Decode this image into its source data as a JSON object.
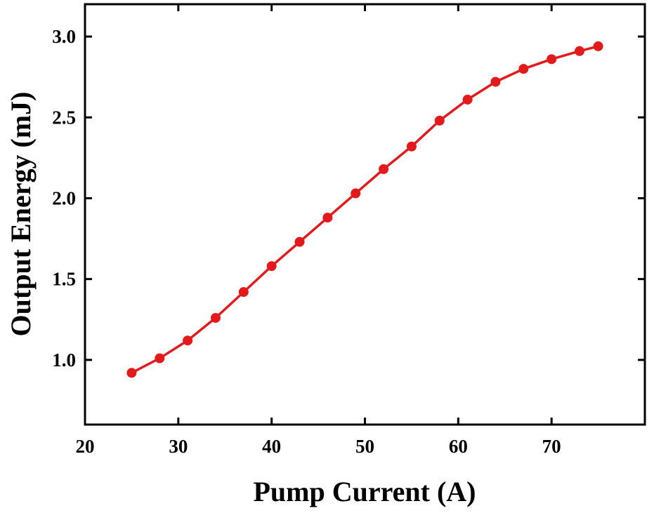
{
  "chart_data": {
    "type": "line",
    "title": "",
    "xlabel": "Pump Current (A)",
    "ylabel": "Output Energy (mJ)",
    "xlim": [
      20,
      80
    ],
    "ylim": [
      0.6,
      3.2
    ],
    "xticks": [
      "20",
      "30",
      "40",
      "50",
      "60",
      "70"
    ],
    "xtick_values": [
      20,
      30,
      40,
      50,
      60,
      70
    ],
    "yticks": [
      "1.0",
      "1.5",
      "2.0",
      "2.5",
      "3.0"
    ],
    "ytick_values": [
      1.0,
      1.5,
      2.0,
      2.5,
      3.0
    ],
    "grid": false,
    "legend": "none",
    "series": [
      {
        "color": "#e31a1c",
        "marker": "circle",
        "x": [
          25,
          28,
          31,
          34,
          37,
          40,
          43,
          46,
          49,
          52,
          55,
          58,
          61,
          64,
          67,
          70,
          73,
          75
        ],
        "y": [
          0.92,
          1.01,
          1.12,
          1.26,
          1.42,
          1.58,
          1.73,
          1.88,
          2.03,
          2.18,
          2.32,
          2.48,
          2.61,
          2.72,
          2.8,
          2.86,
          2.91,
          2.94
        ]
      }
    ]
  }
}
